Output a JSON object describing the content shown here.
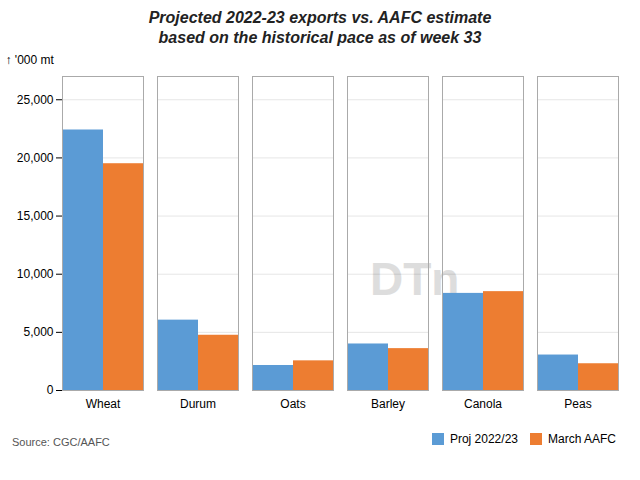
{
  "chart_data": {
    "type": "bar",
    "title": "Projected 2022-23 exports vs. AAFC estimate\nbased on the historical pace as of week 33",
    "categories": [
      "Wheat",
      "Durum",
      "Oats",
      "Barley",
      "Canola",
      "Peas"
    ],
    "series": [
      {
        "name": "Proj 2022/23",
        "color": "#5b9bd5",
        "values": [
          22400,
          6050,
          2150,
          4000,
          8350,
          3050
        ]
      },
      {
        "name": "March AAFC",
        "color": "#ed7d31",
        "values": [
          19500,
          4750,
          2550,
          3600,
          8500,
          2300
        ]
      }
    ],
    "ylabel": "'000 mt",
    "ylim": [
      0,
      27000
    ],
    "yticks": [
      0,
      {
        "value": 5000,
        "label": "5,000"
      },
      {
        "value": 10000,
        "label": "10,000"
      },
      {
        "value": 15000,
        "label": "15,000"
      },
      {
        "value": 20000,
        "label": "20,000"
      },
      {
        "value": 25000,
        "label": "25,000"
      }
    ],
    "grid": true,
    "legend": "bottom",
    "annotations": [
      "DTn",
      "Source: CGC/AAFC"
    ]
  }
}
